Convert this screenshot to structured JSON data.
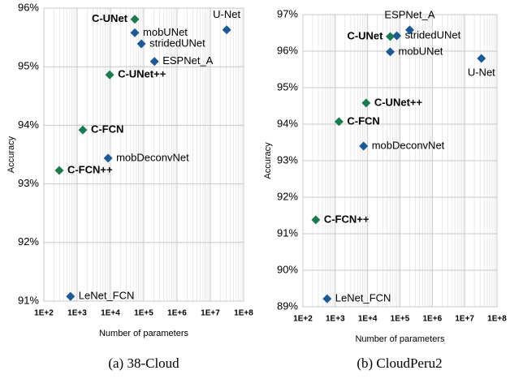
{
  "chart_data": [
    {
      "type": "scatter",
      "caption": "(a) 38-Cloud",
      "xlabel": "Number of parameters",
      "ylabel": "Accuracy",
      "xscale": "log",
      "grid": true,
      "minor_grid": true,
      "xlim": [
        100,
        100000000
      ],
      "xticks": [
        {
          "value": 100,
          "label": "1E+2"
        },
        {
          "value": 1000,
          "label": "1E+3"
        },
        {
          "value": 10000,
          "label": "1E+4"
        },
        {
          "value": 100000,
          "label": "1E+5"
        },
        {
          "value": 1000000,
          "label": "1E+6"
        },
        {
          "value": 10000000,
          "label": "1E+7"
        },
        {
          "value": 100000000,
          "label": "1E+8"
        }
      ],
      "ylim": [
        91,
        96
      ],
      "yticks": [
        {
          "value": 91,
          "label": "91%"
        },
        {
          "value": 92,
          "label": "92%"
        },
        {
          "value": 93,
          "label": "93%"
        },
        {
          "value": 94,
          "label": "94%"
        },
        {
          "value": 95,
          "label": "95%"
        },
        {
          "value": 96,
          "label": "96%"
        }
      ],
      "labels": [
        "C-UNet",
        "mobUNet",
        "stridedUNet",
        "U-Net",
        "ESPNet_A",
        "C-UNet++",
        "C-FCN",
        "mobDeconvNet",
        "C-FCN++",
        "LeNet_FCN"
      ],
      "x": [
        54000,
        54000,
        85000,
        31000000,
        210000,
        9500,
        1480,
        8500,
        290,
        630
      ],
      "values": [
        95.81,
        95.58,
        95.39,
        95.63,
        95.09,
        94.86,
        93.92,
        93.44,
        93.23,
        91.08
      ],
      "colors": [
        "#1b7a4e",
        "#1d5a94",
        "#1d5a94",
        "#1d5a94",
        "#1d5a94",
        "#1b7a4e",
        "#1b7a4e",
        "#1d5a94",
        "#1b7a4e",
        "#1d5a94"
      ],
      "bold": [
        true,
        false,
        false,
        false,
        false,
        true,
        true,
        false,
        true,
        false
      ]
    },
    {
      "type": "scatter",
      "caption": "(b) CloudPeru2",
      "xlabel": "Number of parameters",
      "ylabel": "Accuracy",
      "xscale": "log",
      "grid": true,
      "minor_grid": true,
      "xlim": [
        100,
        100000000
      ],
      "xticks": [
        {
          "value": 100,
          "label": "1E+2"
        },
        {
          "value": 1000,
          "label": "1E+3"
        },
        {
          "value": 10000,
          "label": "1E+4"
        },
        {
          "value": 100000,
          "label": "1E+5"
        },
        {
          "value": 1000000,
          "label": "1E+6"
        },
        {
          "value": 10000000,
          "label": "1E+7"
        },
        {
          "value": 100000000,
          "label": "1E+8"
        }
      ],
      "ylim": [
        89,
        97
      ],
      "yticks": [
        {
          "value": 89,
          "label": "89%"
        },
        {
          "value": 90,
          "label": "90%"
        },
        {
          "value": 91,
          "label": "91%"
        },
        {
          "value": 92,
          "label": "92%"
        },
        {
          "value": 93,
          "label": "93%"
        },
        {
          "value": 94,
          "label": "94%"
        },
        {
          "value": 95,
          "label": "95%"
        },
        {
          "value": 96,
          "label": "96%"
        },
        {
          "value": 97,
          "label": "97%"
        }
      ],
      "labels": [
        "C-UNet",
        "stridedUNet",
        "ESPNet_A",
        "mobUNet",
        "U-Net",
        "C-UNet++",
        "C-FCN",
        "mobDeconvNet",
        "C-FCN++",
        "LeNet_FCN"
      ],
      "x": [
        50000,
        80000,
        200000,
        50000,
        33000000,
        9000,
        1300,
        7500,
        250,
        560
      ],
      "values": [
        96.4,
        96.42,
        96.58,
        95.98,
        95.8,
        94.58,
        94.07,
        93.4,
        91.38,
        89.22
      ],
      "colors": [
        "#1b7a4e",
        "#1d5a94",
        "#1d5a94",
        "#1d5a94",
        "#1d5a94",
        "#1b7a4e",
        "#1b7a4e",
        "#1d5a94",
        "#1b7a4e",
        "#1d5a94"
      ],
      "bold": [
        true,
        false,
        false,
        false,
        false,
        true,
        true,
        false,
        true,
        false
      ]
    }
  ]
}
